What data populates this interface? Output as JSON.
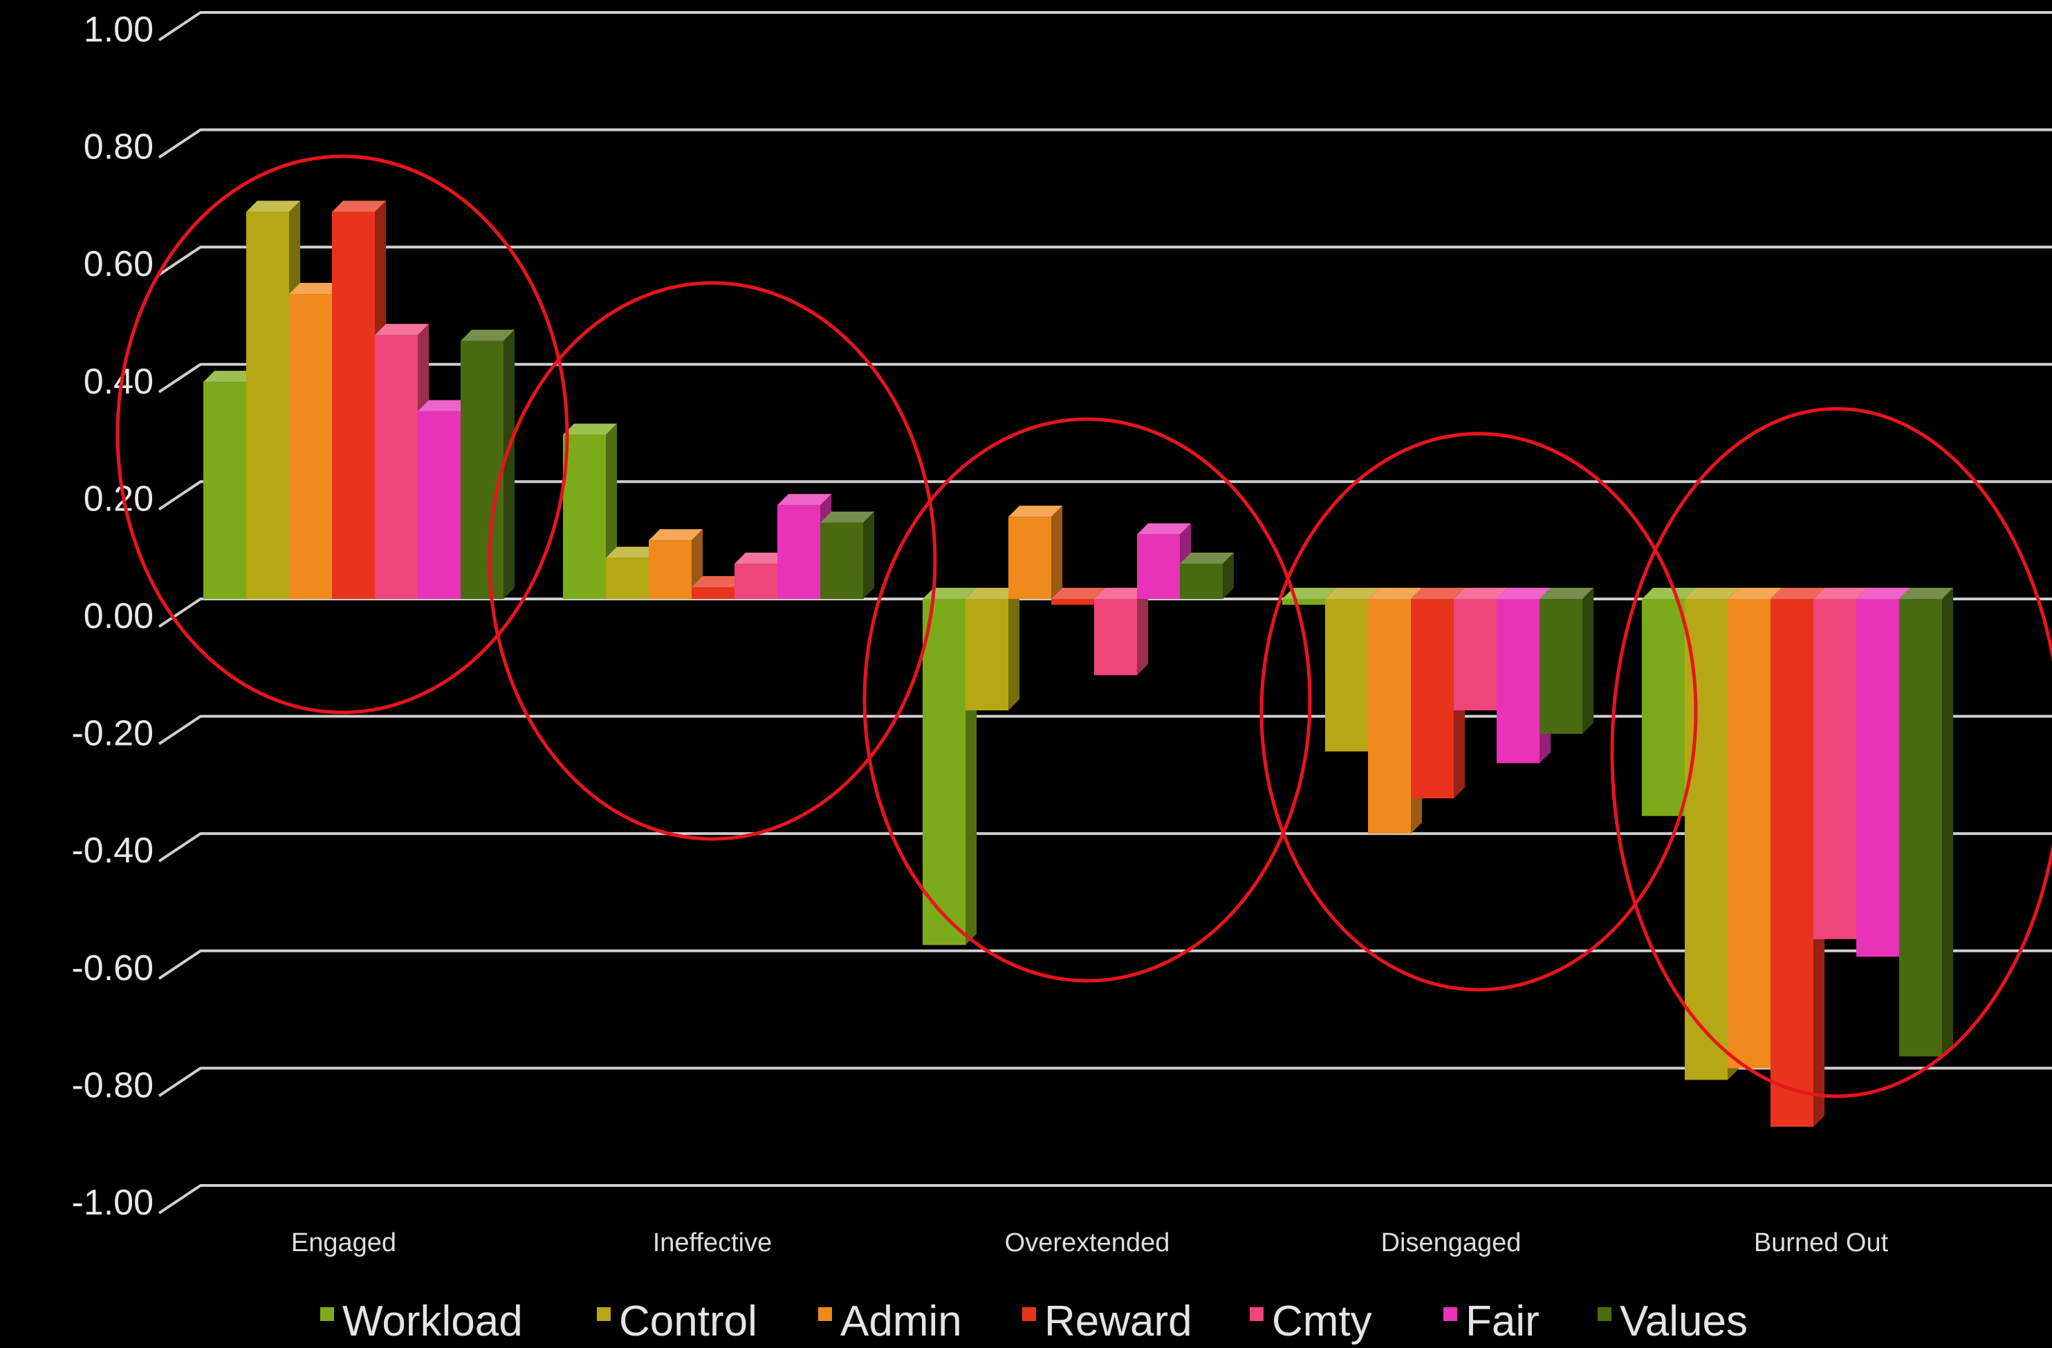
{
  "chart_data": {
    "type": "bar",
    "categories": [
      "Engaged",
      "Ineffective",
      "Overextended",
      "Disengaged",
      "Burned Out"
    ],
    "series": [
      {
        "name": "Workload",
        "color": "#7cab1a",
        "values": [
          0.37,
          0.28,
          -0.59,
          -0.01,
          -0.37
        ]
      },
      {
        "name": "Control",
        "color": "#b5a814",
        "values": [
          0.66,
          0.07,
          -0.19,
          -0.26,
          -0.82
        ]
      },
      {
        "name": "Admin",
        "color": "#f08a1c",
        "values": [
          0.52,
          0.1,
          0.14,
          -0.4,
          -0.8
        ]
      },
      {
        "name": "Reward",
        "color": "#e8341c",
        "values": [
          0.66,
          0.02,
          -0.01,
          -0.34,
          -0.9
        ]
      },
      {
        "name": "Cmty",
        "color": "#f0457a",
        "values": [
          0.45,
          0.06,
          -0.13,
          -0.19,
          -0.58
        ]
      },
      {
        "name": "Fair",
        "color": "#e832b8",
        "values": [
          0.32,
          0.16,
          0.11,
          -0.28,
          -0.61
        ]
      },
      {
        "name": "Values",
        "color": "#4a6a12",
        "values": [
          0.44,
          0.13,
          0.06,
          -0.23,
          -0.78
        ]
      }
    ],
    "y_ticks": [
      "1.00",
      "0.80",
      "0.60",
      "0.40",
      "0.20",
      "0.00",
      "-0.20",
      "-0.40",
      "-0.60",
      "-0.80",
      "-1.00"
    ],
    "ylim": [
      -1.0,
      1.0
    ],
    "grid": true,
    "legend_position": "bottom",
    "annotations": "red ellipse around each category group",
    "highlight_color": "#e8141c"
  }
}
